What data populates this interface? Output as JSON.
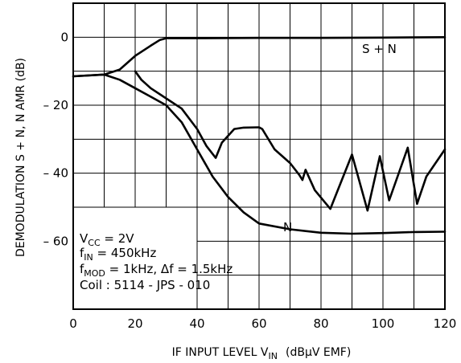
{
  "chart_data": {
    "type": "line",
    "xlabel": "IF INPUT LEVEL V",
    "xlabel_sub": "IN",
    "xlabel_units": "(dBμV EMF)",
    "ylabel": "DEMODULATION S + N, N AMR   (dB)",
    "xlim": [
      0,
      120
    ],
    "ylim": [
      -80,
      10
    ],
    "x_ticks": [
      0,
      20,
      40,
      60,
      80,
      100,
      120
    ],
    "x_tick_labels": [
      "0",
      "20",
      "40",
      "60",
      "80",
      "100",
      "120"
    ],
    "y_ticks": [
      0,
      -20,
      -40,
      -60
    ],
    "y_tick_labels": [
      "0",
      "– 20",
      "– 40",
      "– 60"
    ],
    "grid": true,
    "series": [
      {
        "name": "S + N",
        "x": [
          0,
          10,
          15,
          20,
          25,
          28,
          30,
          40,
          60,
          80,
          100,
          120
        ],
        "y": [
          -11.5,
          -11,
          -9.5,
          -5.5,
          -2.5,
          -0.8,
          -0.3,
          -0.3,
          -0.2,
          -0.2,
          -0.1,
          0
        ]
      },
      {
        "name": "N",
        "x": [
          0,
          10,
          15,
          20,
          25,
          30,
          35,
          40,
          45,
          50,
          55,
          60,
          70,
          80,
          90,
          100,
          110,
          120
        ],
        "y": [
          -11.5,
          -11,
          -12.5,
          -15,
          -17.5,
          -20,
          -25,
          -33,
          -41,
          -47,
          -51.5,
          -54.8,
          -56.5,
          -57.5,
          -57.8,
          -57.6,
          -57.3,
          -57.2
        ]
      },
      {
        "name": "",
        "x": [
          20,
          22,
          25,
          30,
          35,
          40,
          43,
          46,
          48,
          50,
          52,
          55,
          60,
          61,
          65,
          70,
          73,
          74,
          75,
          78,
          83,
          90,
          95,
          99,
          102,
          108,
          111,
          114,
          120
        ],
        "y": [
          -10,
          -12.5,
          -15,
          -18,
          -21,
          -27,
          -32,
          -35.5,
          -31,
          -29,
          -27,
          -26.6,
          -26.5,
          -27,
          -33,
          -37,
          -40.5,
          -42,
          -39,
          -45,
          -50.5,
          -34.5,
          -51,
          -35,
          -48,
          -32.5,
          -49,
          -41,
          -33
        ]
      }
    ],
    "annotations": {
      "sn_label": "S + N",
      "n_label": "N",
      "vcc_prefix": "V",
      "vcc_sub": "CC",
      "vcc_value": " = 2V",
      "fin_prefix": "f",
      "fin_sub": "IN",
      "fin_value": " = 450kHz",
      "fmod_prefix": "f",
      "fmod_sub": "MOD",
      "fmod_value": " = 1kHz, Δf = 1.5kHz",
      "coil": "Coil :  5114 - JPS - 010"
    }
  }
}
